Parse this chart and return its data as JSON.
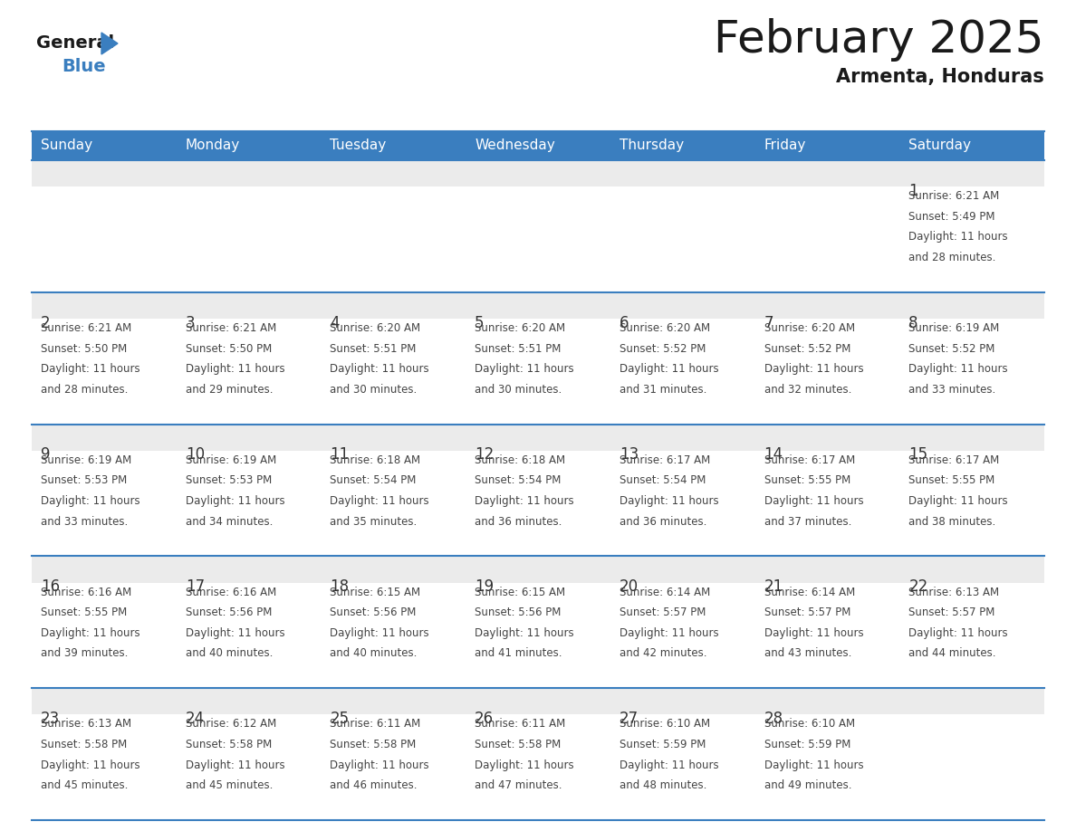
{
  "title": "February 2025",
  "subtitle": "Armenta, Honduras",
  "header_color": "#3a7ebf",
  "header_text_color": "#ffffff",
  "background_color": "#ffffff",
  "cell_top_bg": "#ebebeb",
  "cell_body_bg": "#ffffff",
  "line_color": "#3a7ebf",
  "title_color": "#1a1a1a",
  "subtitle_color": "#1a1a1a",
  "day_num_color": "#333333",
  "info_text_color": "#444444",
  "day_headers": [
    "Sunday",
    "Monday",
    "Tuesday",
    "Wednesday",
    "Thursday",
    "Friday",
    "Saturday"
  ],
  "days": [
    {
      "day": 1,
      "col": 6,
      "row": 0,
      "sunrise": "6:21 AM",
      "sunset": "5:49 PM",
      "daylight_hours": 11,
      "daylight_minutes": 28
    },
    {
      "day": 2,
      "col": 0,
      "row": 1,
      "sunrise": "6:21 AM",
      "sunset": "5:50 PM",
      "daylight_hours": 11,
      "daylight_minutes": 28
    },
    {
      "day": 3,
      "col": 1,
      "row": 1,
      "sunrise": "6:21 AM",
      "sunset": "5:50 PM",
      "daylight_hours": 11,
      "daylight_minutes": 29
    },
    {
      "day": 4,
      "col": 2,
      "row": 1,
      "sunrise": "6:20 AM",
      "sunset": "5:51 PM",
      "daylight_hours": 11,
      "daylight_minutes": 30
    },
    {
      "day": 5,
      "col": 3,
      "row": 1,
      "sunrise": "6:20 AM",
      "sunset": "5:51 PM",
      "daylight_hours": 11,
      "daylight_minutes": 30
    },
    {
      "day": 6,
      "col": 4,
      "row": 1,
      "sunrise": "6:20 AM",
      "sunset": "5:52 PM",
      "daylight_hours": 11,
      "daylight_minutes": 31
    },
    {
      "day": 7,
      "col": 5,
      "row": 1,
      "sunrise": "6:20 AM",
      "sunset": "5:52 PM",
      "daylight_hours": 11,
      "daylight_minutes": 32
    },
    {
      "day": 8,
      "col": 6,
      "row": 1,
      "sunrise": "6:19 AM",
      "sunset": "5:52 PM",
      "daylight_hours": 11,
      "daylight_minutes": 33
    },
    {
      "day": 9,
      "col": 0,
      "row": 2,
      "sunrise": "6:19 AM",
      "sunset": "5:53 PM",
      "daylight_hours": 11,
      "daylight_minutes": 33
    },
    {
      "day": 10,
      "col": 1,
      "row": 2,
      "sunrise": "6:19 AM",
      "sunset": "5:53 PM",
      "daylight_hours": 11,
      "daylight_minutes": 34
    },
    {
      "day": 11,
      "col": 2,
      "row": 2,
      "sunrise": "6:18 AM",
      "sunset": "5:54 PM",
      "daylight_hours": 11,
      "daylight_minutes": 35
    },
    {
      "day": 12,
      "col": 3,
      "row": 2,
      "sunrise": "6:18 AM",
      "sunset": "5:54 PM",
      "daylight_hours": 11,
      "daylight_minutes": 36
    },
    {
      "day": 13,
      "col": 4,
      "row": 2,
      "sunrise": "6:17 AM",
      "sunset": "5:54 PM",
      "daylight_hours": 11,
      "daylight_minutes": 36
    },
    {
      "day": 14,
      "col": 5,
      "row": 2,
      "sunrise": "6:17 AM",
      "sunset": "5:55 PM",
      "daylight_hours": 11,
      "daylight_minutes": 37
    },
    {
      "day": 15,
      "col": 6,
      "row": 2,
      "sunrise": "6:17 AM",
      "sunset": "5:55 PM",
      "daylight_hours": 11,
      "daylight_minutes": 38
    },
    {
      "day": 16,
      "col": 0,
      "row": 3,
      "sunrise": "6:16 AM",
      "sunset": "5:55 PM",
      "daylight_hours": 11,
      "daylight_minutes": 39
    },
    {
      "day": 17,
      "col": 1,
      "row": 3,
      "sunrise": "6:16 AM",
      "sunset": "5:56 PM",
      "daylight_hours": 11,
      "daylight_minutes": 40
    },
    {
      "day": 18,
      "col": 2,
      "row": 3,
      "sunrise": "6:15 AM",
      "sunset": "5:56 PM",
      "daylight_hours": 11,
      "daylight_minutes": 40
    },
    {
      "day": 19,
      "col": 3,
      "row": 3,
      "sunrise": "6:15 AM",
      "sunset": "5:56 PM",
      "daylight_hours": 11,
      "daylight_minutes": 41
    },
    {
      "day": 20,
      "col": 4,
      "row": 3,
      "sunrise": "6:14 AM",
      "sunset": "5:57 PM",
      "daylight_hours": 11,
      "daylight_minutes": 42
    },
    {
      "day": 21,
      "col": 5,
      "row": 3,
      "sunrise": "6:14 AM",
      "sunset": "5:57 PM",
      "daylight_hours": 11,
      "daylight_minutes": 43
    },
    {
      "day": 22,
      "col": 6,
      "row": 3,
      "sunrise": "6:13 AM",
      "sunset": "5:57 PM",
      "daylight_hours": 11,
      "daylight_minutes": 44
    },
    {
      "day": 23,
      "col": 0,
      "row": 4,
      "sunrise": "6:13 AM",
      "sunset": "5:58 PM",
      "daylight_hours": 11,
      "daylight_minutes": 45
    },
    {
      "day": 24,
      "col": 1,
      "row": 4,
      "sunrise": "6:12 AM",
      "sunset": "5:58 PM",
      "daylight_hours": 11,
      "daylight_minutes": 45
    },
    {
      "day": 25,
      "col": 2,
      "row": 4,
      "sunrise": "6:11 AM",
      "sunset": "5:58 PM",
      "daylight_hours": 11,
      "daylight_minutes": 46
    },
    {
      "day": 26,
      "col": 3,
      "row": 4,
      "sunrise": "6:11 AM",
      "sunset": "5:58 PM",
      "daylight_hours": 11,
      "daylight_minutes": 47
    },
    {
      "day": 27,
      "col": 4,
      "row": 4,
      "sunrise": "6:10 AM",
      "sunset": "5:59 PM",
      "daylight_hours": 11,
      "daylight_minutes": 48
    },
    {
      "day": 28,
      "col": 5,
      "row": 4,
      "sunrise": "6:10 AM",
      "sunset": "5:59 PM",
      "daylight_hours": 11,
      "daylight_minutes": 49
    }
  ],
  "num_rows": 5,
  "num_cols": 7,
  "figwidth": 11.88,
  "figheight": 9.18,
  "dpi": 100
}
